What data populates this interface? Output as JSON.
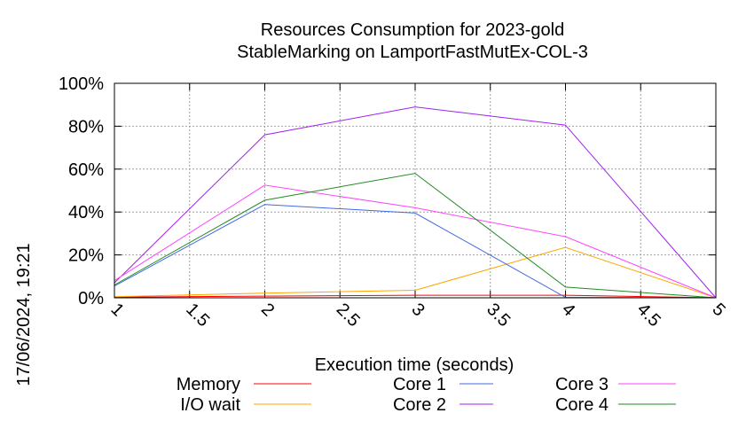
{
  "chart_data": {
    "type": "line",
    "title": "Resources Consumption for 2023-gold",
    "subtitle": "StableMarking on LamportFastMutEx-COL-3",
    "xlabel": "Execution time (seconds)",
    "ylabel": "",
    "timestamp": "17/06/2024, 19:21",
    "xlim": [
      1,
      5
    ],
    "ylim": [
      0,
      100
    ],
    "x_ticks": [
      {
        "value": 1,
        "label": "1"
      },
      {
        "value": 1.5,
        "label": "1.5"
      },
      {
        "value": 2,
        "label": "2"
      },
      {
        "value": 2.5,
        "label": "2.5"
      },
      {
        "value": 3,
        "label": "3"
      },
      {
        "value": 3.5,
        "label": "3.5"
      },
      {
        "value": 4,
        "label": "4"
      },
      {
        "value": 4.5,
        "label": "4.5"
      },
      {
        "value": 5,
        "label": "5"
      }
    ],
    "y_ticks": [
      {
        "value": 0,
        "label": "0%"
      },
      {
        "value": 20,
        "label": "20%"
      },
      {
        "value": 40,
        "label": "40%"
      },
      {
        "value": 60,
        "label": "60%"
      },
      {
        "value": 80,
        "label": "80%"
      },
      {
        "value": 100,
        "label": "100%"
      }
    ],
    "grid": true,
    "legend_position": "bottom",
    "x": [
      1,
      2,
      3,
      4,
      5
    ],
    "series": [
      {
        "name": "Memory",
        "color": "#ff0000",
        "values": [
          0.3,
          0.8,
          1.2,
          1.2,
          0
        ]
      },
      {
        "name": "I/O wait",
        "color": "#ffa500",
        "values": [
          0.5,
          2.2,
          3.5,
          23.5,
          0
        ]
      },
      {
        "name": "Core 1",
        "color": "#4169e1",
        "values": [
          5.5,
          43.5,
          39.5,
          0.2,
          0
        ]
      },
      {
        "name": "Core 2",
        "color": "#a020f0",
        "values": [
          7,
          76,
          89,
          80.5,
          0
        ]
      },
      {
        "name": "Core 3",
        "color": "#ff44ff",
        "values": [
          8,
          52.5,
          42,
          28.5,
          0
        ]
      },
      {
        "name": "Core 4",
        "color": "#228b22",
        "values": [
          6,
          45.5,
          58,
          5,
          0
        ]
      }
    ]
  }
}
